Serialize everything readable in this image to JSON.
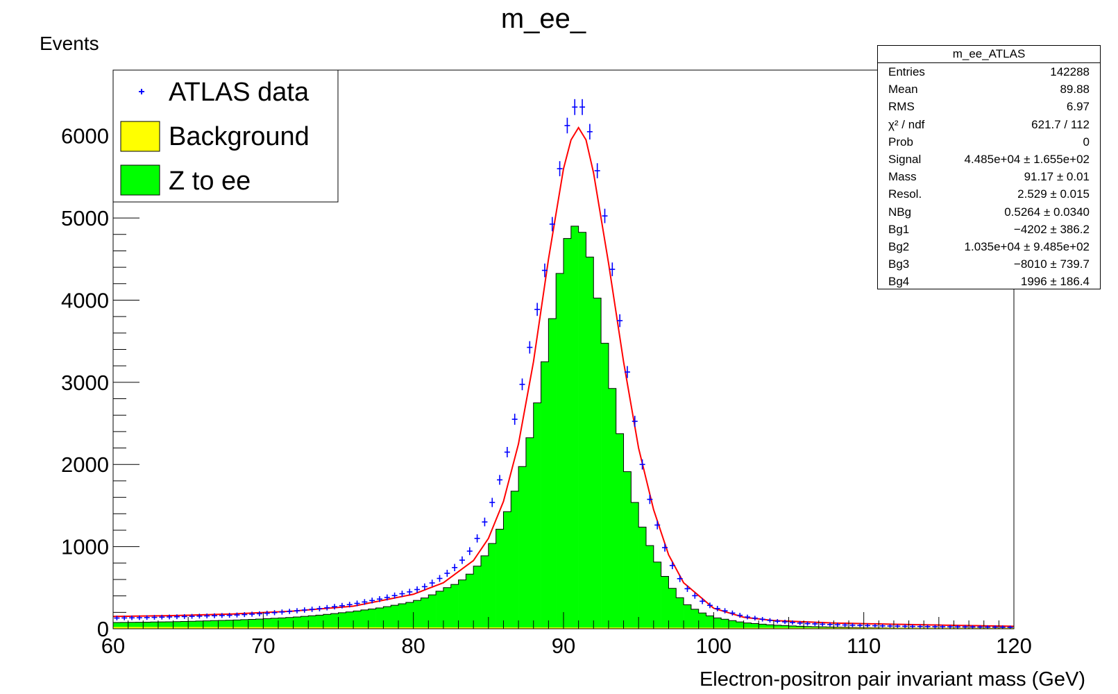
{
  "chart_data": {
    "type": "histogram",
    "title": "m_ee_",
    "xlabel": "Electron-positron pair invariant mass (GeV)",
    "ylabel": "Events",
    "xlim": [
      60,
      120
    ],
    "ylim": [
      0,
      6800
    ],
    "bin_width": 0.5,
    "x_ticks": [
      "60",
      "70",
      "80",
      "90",
      "100",
      "110",
      "120"
    ],
    "y_ticks": [
      "0",
      "1000",
      "2000",
      "3000",
      "4000",
      "5000",
      "6000"
    ],
    "legend": {
      "position": "top-left",
      "entries": [
        {
          "label": "ATLAS data",
          "style": "marker",
          "color": "#0000ff"
        },
        {
          "label": "Background",
          "style": "fill",
          "color": "#ffff00"
        },
        {
          "label": "Z to ee",
          "style": "fill",
          "color": "#00ff00"
        }
      ]
    },
    "colors": {
      "data": "#0000ff",
      "background": "#ffff00",
      "signal": "#00ff00",
      "fit": "#ff0000"
    },
    "stats": {
      "title": "m_ee_ATLAS",
      "rows": [
        {
          "key": "Entries",
          "value": "142288"
        },
        {
          "key": "Mean",
          "value": "89.88"
        },
        {
          "key": "RMS",
          "value": "6.97"
        },
        {
          "key": "χ² / ndf",
          "value": "621.7 / 112"
        },
        {
          "key": "Prob",
          "value": "0"
        },
        {
          "key": "Signal",
          "value": "4.485e+04 ± 1.655e+02"
        },
        {
          "key": "Mass",
          "value": "91.17 ± 0.01"
        },
        {
          "key": "Resol.",
          "value": "2.529 ± 0.015"
        },
        {
          "key": "NBg",
          "value": "0.5264 ± 0.0340"
        },
        {
          "key": "Bg1",
          "value": "−4202 ± 386.2"
        },
        {
          "key": "Bg2",
          "value": "1.035e+04 ± 9.485e+02"
        },
        {
          "key": "Bg3",
          "value": "−8010 ± 739.7"
        },
        {
          "key": "Bg4",
          "value": "1996 ± 186.4"
        }
      ]
    },
    "series": [
      {
        "name": "Z to ee",
        "type": "stacked-histogram",
        "x": [
          60,
          62,
          64,
          66,
          68,
          70,
          72,
          74,
          76,
          78,
          80,
          81,
          82,
          83,
          84,
          85,
          86,
          87,
          88,
          89,
          90,
          90.5,
          91,
          91.5,
          92,
          93,
          94,
          95,
          96,
          97,
          98,
          99,
          100,
          102,
          104,
          106,
          108,
          110,
          112,
          115,
          120
        ],
        "values": [
          75,
          80,
          85,
          95,
          105,
          120,
          140,
          170,
          210,
          260,
          330,
          390,
          480,
          560,
          700,
          950,
          1300,
          1800,
          2500,
          3500,
          4600,
          4900,
          4900,
          4750,
          4300,
          3200,
          2100,
          1350,
          900,
          550,
          320,
          210,
          140,
          75,
          45,
          28,
          20,
          14,
          10,
          8,
          6
        ]
      },
      {
        "name": "Background",
        "type": "stacked-histogram",
        "x": [
          60,
          120
        ],
        "values": [
          22,
          10
        ]
      },
      {
        "name": "ATLAS data",
        "type": "points-with-errors",
        "x": [
          60,
          62,
          64,
          66,
          68,
          70,
          72,
          74,
          76,
          78,
          80,
          81,
          82,
          83,
          84,
          85,
          86,
          87,
          88,
          89,
          89.5,
          90,
          90.5,
          91,
          91.5,
          92,
          92.5,
          93,
          93.5,
          94,
          94.5,
          95,
          95.5,
          96,
          97,
          98,
          99,
          100,
          102,
          104,
          106,
          108,
          110,
          112,
          115,
          120
        ],
        "values": [
          130,
          135,
          145,
          155,
          165,
          185,
          215,
          250,
          300,
          370,
          460,
          530,
          640,
          780,
          1000,
          1400,
          1950,
          2750,
          3650,
          4600,
          5250,
          5950,
          6300,
          6400,
          6300,
          5800,
          5350,
          4700,
          4050,
          3450,
          2800,
          2250,
          1750,
          1400,
          850,
          530,
          360,
          260,
          150,
          95,
          65,
          50,
          40,
          32,
          25,
          18
        ]
      },
      {
        "name": "fit",
        "type": "curve",
        "x": [
          60,
          64,
          68,
          72,
          76,
          80,
          82,
          84,
          85,
          86,
          87,
          88,
          89,
          90,
          90.5,
          91,
          91.5,
          92,
          93,
          94,
          95,
          96,
          97,
          98,
          100,
          102,
          104,
          108,
          112,
          116,
          120
        ],
        "values": [
          150,
          160,
          180,
          215,
          275,
          420,
          560,
          830,
          1100,
          1550,
          2250,
          3250,
          4500,
          5600,
          5950,
          6100,
          5950,
          5550,
          4450,
          3250,
          2200,
          1450,
          900,
          560,
          250,
          140,
          100,
          70,
          55,
          42,
          30
        ]
      }
    ]
  }
}
